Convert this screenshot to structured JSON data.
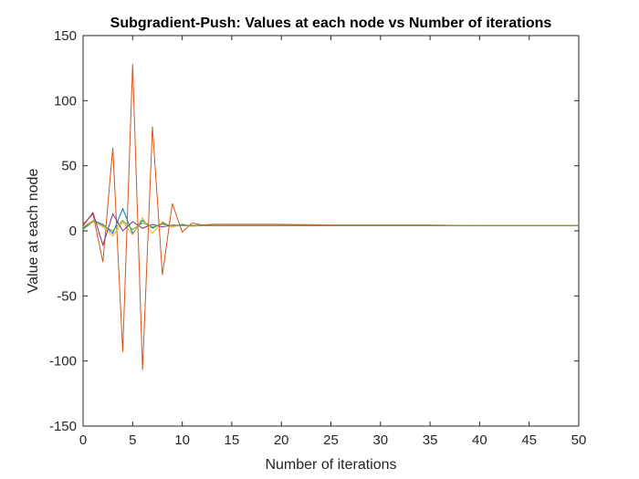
{
  "chart_data": {
    "type": "line",
    "title": "Subgradient-Push: Values at each node vs Number of iterations",
    "xlabel": "Number of iterations",
    "ylabel": "Value at each node",
    "xlim": [
      0,
      50
    ],
    "ylim": [
      -150,
      150
    ],
    "xticks": [
      0,
      5,
      10,
      15,
      20,
      25,
      30,
      35,
      40,
      45,
      50
    ],
    "yticks": [
      -150,
      -100,
      -50,
      0,
      50,
      100,
      150
    ],
    "grid": false,
    "legend": "none",
    "series": [
      {
        "color": "#0072BD",
        "x": [
          0,
          1,
          2,
          3,
          4,
          5,
          6,
          7,
          8,
          9,
          10,
          11,
          12,
          13,
          14,
          15,
          20,
          25,
          30,
          35,
          40,
          45,
          50
        ],
        "y": [
          2,
          8,
          5,
          -2,
          17,
          -2,
          8,
          2,
          6,
          3,
          5,
          3.5,
          4.5,
          4,
          4,
          4,
          4,
          4,
          4,
          4,
          4,
          4,
          4
        ]
      },
      {
        "color": "#D95319",
        "x": [
          0,
          1,
          2,
          3,
          4,
          5,
          6,
          7,
          8,
          9,
          10,
          11,
          12,
          13,
          14,
          15,
          20,
          25,
          30,
          35,
          40,
          45,
          50
        ],
        "y": [
          5,
          13,
          -24,
          64,
          -93,
          128,
          -107,
          80,
          -34,
          21,
          -1,
          6,
          4.5,
          5,
          5,
          5,
          5,
          4.5,
          4.5,
          4.5,
          4,
          4,
          4
        ]
      },
      {
        "color": "#EDB120",
        "x": [
          0,
          1,
          2,
          3,
          4,
          5,
          6,
          7,
          8,
          9,
          10,
          11,
          12,
          13,
          14,
          15,
          20,
          25,
          30,
          35,
          40,
          45,
          50
        ],
        "y": [
          3,
          8,
          3,
          -4,
          7,
          -3,
          10,
          -2,
          7,
          3,
          4.5,
          3.5,
          4,
          4,
          4,
          4,
          4,
          4,
          4,
          4,
          4,
          4,
          4
        ]
      },
      {
        "color": "#7E2F8E",
        "x": [
          0,
          1,
          2,
          3,
          4,
          5,
          6,
          7,
          8,
          9,
          10,
          11,
          12,
          13,
          14,
          15,
          20,
          25,
          30,
          35,
          40,
          45,
          50
        ],
        "y": [
          4,
          14,
          -11,
          13,
          0,
          7,
          2,
          5,
          3,
          4.5,
          4,
          4.2,
          4,
          4,
          4,
          4,
          4,
          4,
          4,
          4,
          4,
          4,
          4
        ]
      },
      {
        "color": "#77AC30",
        "x": [
          0,
          1,
          2,
          3,
          4,
          5,
          6,
          7,
          8,
          9,
          10,
          11,
          12,
          13,
          14,
          15,
          20,
          25,
          30,
          35,
          40,
          45,
          50
        ],
        "y": [
          1,
          7,
          4,
          0,
          8,
          1,
          6,
          3,
          5,
          4,
          4,
          4,
          4,
          4,
          4,
          4,
          4,
          4,
          4,
          4,
          4,
          4,
          4
        ]
      }
    ]
  }
}
